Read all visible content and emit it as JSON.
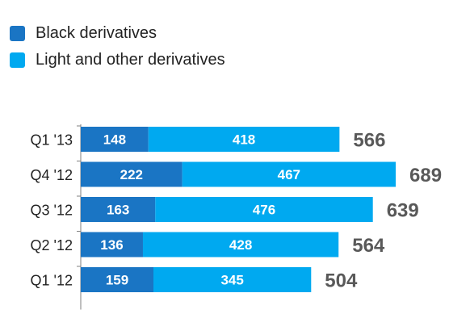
{
  "chart_data": {
    "type": "bar",
    "orientation": "horizontal",
    "stacked": true,
    "categories": [
      "Q1 '13",
      "Q4 '12",
      "Q3 '12",
      "Q2 '12",
      "Q1 '12"
    ],
    "series": [
      {
        "name": "Black derivatives",
        "values": [
          148,
          222,
          163,
          136,
          159
        ],
        "color": "#1a75c4"
      },
      {
        "name": "Light and other derivatives",
        "values": [
          418,
          467,
          476,
          428,
          345
        ],
        "color": "#00a9f0"
      }
    ],
    "totals": [
      566,
      689,
      639,
      564,
      504
    ],
    "legend_position": "top-left",
    "grid": false,
    "xlim": [
      0,
      689
    ],
    "title": "",
    "xlabel": "",
    "ylabel": ""
  }
}
